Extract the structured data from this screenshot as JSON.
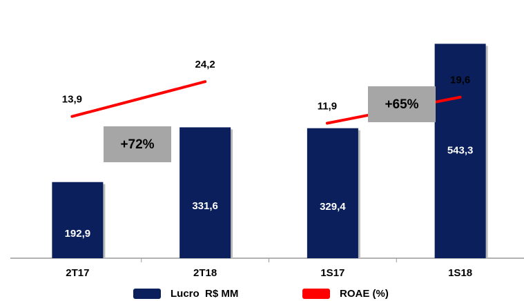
{
  "chart_data": {
    "type": "bar",
    "categories": [
      "2T17",
      "2T18",
      "1S17",
      "1S18"
    ],
    "series": [
      {
        "name": "Lucro  R$ MM",
        "color": "#0a1f5c",
        "values": [
          192.9,
          331.6,
          329.4,
          543.3
        ],
        "value_labels": [
          "192,9",
          "331,6",
          "329,4",
          "543,3"
        ]
      },
      {
        "name": "ROAE (%)",
        "color": "#ff0000",
        "axis": "y2",
        "values": [
          13.9,
          24.2,
          11.9,
          19.6
        ],
        "value_labels": [
          "13,9",
          "24,2",
          "11,9",
          "19,6"
        ]
      }
    ],
    "annotations": [
      "+72%",
      "+65%"
    ],
    "ylim": [
      0,
      600
    ],
    "y2lim": [
      -28,
      42
    ]
  }
}
